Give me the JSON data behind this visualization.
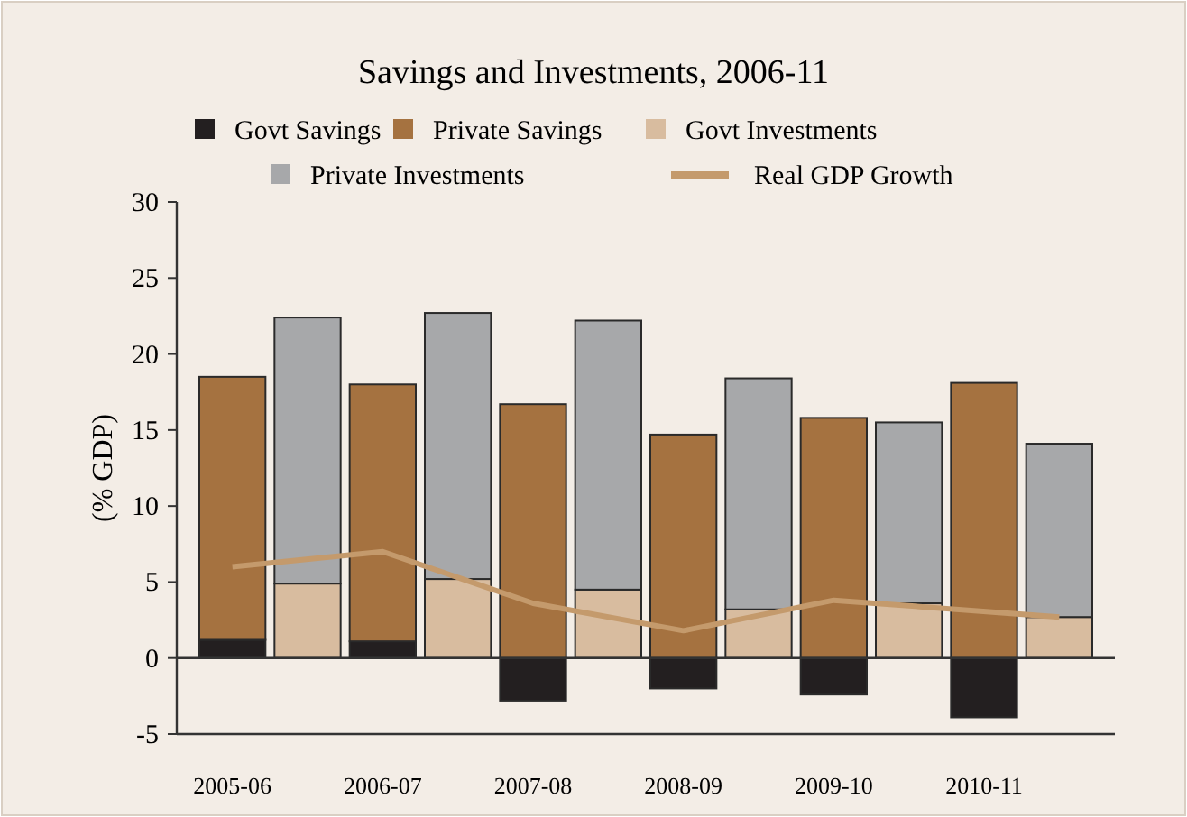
{
  "chart_data": {
    "type": "bar",
    "title": "Savings and Investments, 2006-11",
    "ylabel": "(% GDP)",
    "stacked": true,
    "categories": [
      "2005-06",
      null,
      "2006-07",
      null,
      "2007-08",
      null,
      "2008-09",
      null,
      "2009-10",
      null,
      "2010-11",
      null
    ],
    "series": [
      {
        "name": "Govt Savings",
        "color": "#231f20",
        "values": [
          1.2,
          null,
          1.1,
          null,
          -2.8,
          null,
          -2.0,
          null,
          -2.4,
          null,
          -3.9,
          null
        ]
      },
      {
        "name": "Private Savings",
        "color": "#a57240",
        "values": [
          17.3,
          null,
          16.9,
          null,
          16.7,
          null,
          14.7,
          null,
          15.8,
          null,
          18.1,
          null
        ]
      },
      {
        "name": "Govt Investments",
        "color": "#d8bc9f",
        "values": [
          null,
          4.9,
          null,
          5.2,
          null,
          4.5,
          null,
          3.2,
          null,
          3.6,
          null,
          2.7
        ]
      },
      {
        "name": "Private Investments",
        "color": "#a7a8aa",
        "values": [
          null,
          17.5,
          null,
          17.5,
          null,
          17.7,
          null,
          15.2,
          null,
          11.9,
          null,
          11.4
        ]
      },
      {
        "name": "Real GDP Growth",
        "color": "#c49a6c",
        "type": "line",
        "values": [
          6.0,
          null,
          7.0,
          null,
          3.6,
          null,
          1.8,
          null,
          3.8,
          null,
          null,
          2.7
        ]
      }
    ],
    "ref_lines": [
      {
        "axis": "y",
        "value": 0,
        "color": "#333333"
      }
    ],
    "ylim": [
      -5,
      30
    ],
    "yticks": [
      -5,
      0,
      5,
      10,
      15,
      20,
      25,
      30
    ],
    "legend": "top"
  }
}
